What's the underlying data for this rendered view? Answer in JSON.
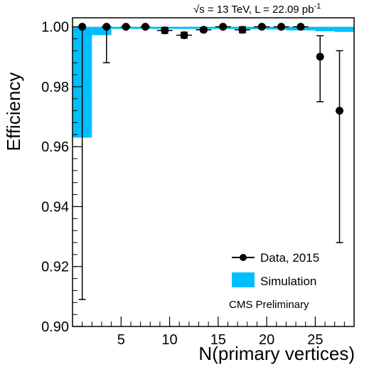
{
  "chart_data": {
    "type": "scatter",
    "header": {
      "sqrt_label": "√s = 13 TeV, L = 22.09 pb",
      "superscript": "-1"
    },
    "xlabel": "N(primary vertices)",
    "ylabel": "Efficiency",
    "xlim": [
      0,
      29
    ],
    "ylim": [
      0.9,
      1.003
    ],
    "xticks": [
      5,
      10,
      15,
      20,
      25
    ],
    "yticks": [
      0.9,
      0.92,
      0.94,
      0.96,
      0.98,
      1.0
    ],
    "ytick_labels": [
      "0.90",
      "0.92",
      "0.94",
      "0.96",
      "0.98",
      "1.00"
    ],
    "legend": {
      "position": "bottom-right",
      "entries": [
        {
          "label": "Data, 2015",
          "kind": "marker",
          "color": "#000000"
        },
        {
          "label": "Simulation",
          "kind": "band",
          "color": "#00bfff"
        }
      ]
    },
    "annotation": "CMS Preliminary",
    "colors": {
      "data": "#000000",
      "simulation": "#00bfff"
    },
    "series": [
      {
        "name": "Data, 2015",
        "points": [
          {
            "x": 1,
            "xerr": 0,
            "y": 1.0,
            "ylo": 0.909,
            "yhi": 1.0
          },
          {
            "x": 3.5,
            "xerr": 0.5,
            "y": 1.0,
            "ylo": 0.988,
            "yhi": 1.0
          },
          {
            "x": 5.5,
            "xerr": 0.5,
            "y": 1.0,
            "ylo": 1.0,
            "yhi": 1.0
          },
          {
            "x": 7.5,
            "xerr": 0.5,
            "y": 1.0,
            "ylo": 0.9995,
            "yhi": 1.0002
          },
          {
            "x": 9.5,
            "xerr": 0.8,
            "y": 0.9988,
            "ylo": 0.9978,
            "yhi": 0.9998
          },
          {
            "x": 11.5,
            "xerr": 0.8,
            "y": 0.9972,
            "ylo": 0.9962,
            "yhi": 0.9982
          },
          {
            "x": 13.5,
            "xerr": 0.8,
            "y": 0.999,
            "ylo": 0.9983,
            "yhi": 0.9997
          },
          {
            "x": 15.5,
            "xerr": 0.8,
            "y": 1.0,
            "ylo": 0.9995,
            "yhi": 1.0003
          },
          {
            "x": 17.5,
            "xerr": 0.8,
            "y": 0.999,
            "ylo": 0.998,
            "yhi": 1.0
          },
          {
            "x": 19.5,
            "xerr": 0.8,
            "y": 1.0,
            "ylo": 0.9995,
            "yhi": 1.0003
          },
          {
            "x": 21.5,
            "xerr": 0.8,
            "y": 1.0,
            "ylo": 0.9995,
            "yhi": 1.0003
          },
          {
            "x": 23.5,
            "xerr": 0.8,
            "y": 1.0,
            "ylo": 0.9995,
            "yhi": 1.0003
          },
          {
            "x": 25.5,
            "xerr": 0,
            "y": 0.99,
            "ylo": 0.975,
            "yhi": 0.997
          },
          {
            "x": 27.5,
            "xerr": 0,
            "y": 0.972,
            "ylo": 0.928,
            "yhi": 0.992
          }
        ]
      },
      {
        "name": "Simulation",
        "bands": [
          {
            "x0": 0,
            "x1": 2,
            "ylo": 0.963,
            "yhi": 1.0
          },
          {
            "x0": 2,
            "x1": 4,
            "ylo": 0.9972,
            "yhi": 1.0
          },
          {
            "x0": 4,
            "x1": 6,
            "ylo": 0.9993,
            "yhi": 1.0
          },
          {
            "x0": 6,
            "x1": 8,
            "ylo": 0.9994,
            "yhi": 1.0
          },
          {
            "x0": 8,
            "x1": 10,
            "ylo": 0.9995,
            "yhi": 1.0
          },
          {
            "x0": 10,
            "x1": 12,
            "ylo": 0.9995,
            "yhi": 1.0
          },
          {
            "x0": 12,
            "x1": 14,
            "ylo": 0.9995,
            "yhi": 1.0
          },
          {
            "x0": 14,
            "x1": 16,
            "ylo": 0.9994,
            "yhi": 1.0
          },
          {
            "x0": 16,
            "x1": 18,
            "ylo": 0.9993,
            "yhi": 1.0
          },
          {
            "x0": 18,
            "x1": 20,
            "ylo": 0.9992,
            "yhi": 1.0
          },
          {
            "x0": 20,
            "x1": 22,
            "ylo": 0.9991,
            "yhi": 1.0
          },
          {
            "x0": 22,
            "x1": 25,
            "ylo": 0.9988,
            "yhi": 1.0
          },
          {
            "x0": 25,
            "x1": 27,
            "ylo": 0.9985,
            "yhi": 1.0
          },
          {
            "x0": 27,
            "x1": 29,
            "ylo": 0.9983,
            "yhi": 1.0
          }
        ]
      }
    ]
  }
}
